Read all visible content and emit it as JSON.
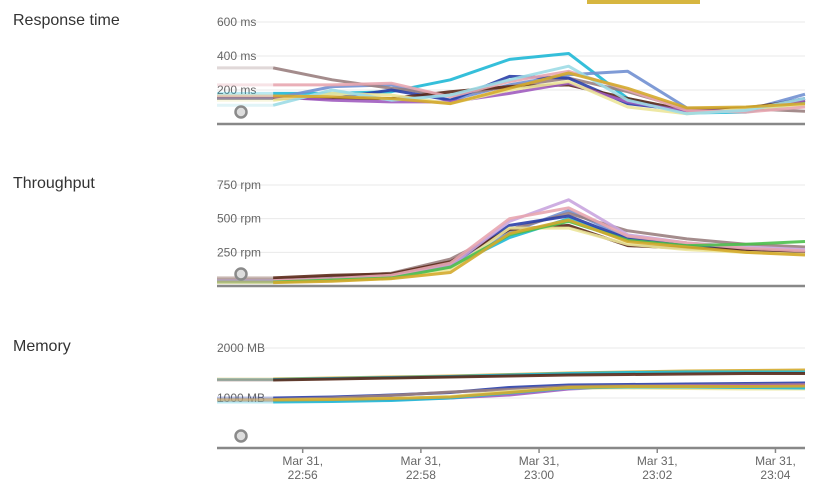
{
  "chart_data": [
    {
      "type": "line",
      "title": "Response time",
      "y_ticks": [
        {
          "value": 200,
          "label": "200 ms"
        },
        {
          "value": 400,
          "label": "400 ms"
        },
        {
          "value": 600,
          "label": "600 ms"
        }
      ],
      "ylim": [
        0,
        600
      ],
      "series": [
        {
          "color": "#1fb8d6",
          "values": [
            180,
            180,
            190,
            260,
            380,
            415,
            150,
            65,
            70,
            130
          ]
        },
        {
          "color": "#7190d2",
          "values": [
            150,
            220,
            230,
            140,
            230,
            290,
            310,
            95,
            80,
            175
          ]
        },
        {
          "color": "#9a8080",
          "values": [
            330,
            260,
            210,
            170,
            220,
            270,
            190,
            90,
            90,
            75
          ]
        },
        {
          "color": "#2a3fa8",
          "values": [
            150,
            150,
            200,
            140,
            280,
            270,
            120,
            80,
            85,
            150
          ]
        },
        {
          "color": "#5c2a1a",
          "values": [
            150,
            150,
            150,
            190,
            220,
            230,
            150,
            80,
            95,
            140
          ]
        },
        {
          "color": "#a05cbf",
          "values": [
            160,
            140,
            130,
            130,
            180,
            240,
            130,
            75,
            80,
            140
          ]
        },
        {
          "color": "#ece59a",
          "values": [
            140,
            180,
            170,
            120,
            200,
            250,
            100,
            60,
            90,
            110
          ]
        },
        {
          "color": "#e8a6b0",
          "values": [
            230,
            230,
            240,
            160,
            250,
            310,
            200,
            80,
            70,
            100
          ]
        },
        {
          "color": "#9ddbe6",
          "values": [
            110,
            200,
            140,
            170,
            260,
            340,
            140,
            60,
            80,
            150
          ]
        },
        {
          "color": "#d4aa2c",
          "values": [
            165,
            160,
            150,
            120,
            210,
            300,
            210,
            95,
            100,
            120
          ]
        }
      ]
    },
    {
      "type": "line",
      "title": "Throughput",
      "y_ticks": [
        {
          "value": 250,
          "label": "250 rpm"
        },
        {
          "value": 500,
          "label": "500 rpm"
        },
        {
          "value": 750,
          "label": "750 rpm"
        }
      ],
      "ylim": [
        0,
        750
      ],
      "series": [
        {
          "color": "#1fb8d6",
          "values": [
            30,
            40,
            60,
            140,
            360,
            500,
            340,
            300,
            270,
            240
          ]
        },
        {
          "color": "#7190d2",
          "values": [
            35,
            50,
            70,
            150,
            400,
            560,
            360,
            310,
            280,
            260
          ]
        },
        {
          "color": "#9a8080",
          "values": [
            50,
            70,
            95,
            200,
            420,
            540,
            410,
            350,
            310,
            290
          ]
        },
        {
          "color": "#2a3fa8",
          "values": [
            40,
            55,
            75,
            160,
            450,
            520,
            350,
            300,
            270,
            250
          ]
        },
        {
          "color": "#5c2a1a",
          "values": [
            60,
            80,
            90,
            180,
            420,
            450,
            300,
            280,
            270,
            250
          ]
        },
        {
          "color": "#c9a5df",
          "values": [
            35,
            45,
            65,
            150,
            480,
            640,
            380,
            320,
            290,
            270
          ]
        },
        {
          "color": "#ece59a",
          "values": [
            30,
            40,
            55,
            120,
            430,
            430,
            310,
            270,
            250,
            235
          ]
        },
        {
          "color": "#e8a6b0",
          "values": [
            40,
            55,
            80,
            170,
            500,
            580,
            370,
            320,
            280,
            260
          ]
        },
        {
          "color": "#4cbf4c",
          "values": [
            30,
            45,
            60,
            140,
            380,
            480,
            340,
            300,
            310,
            330
          ]
        },
        {
          "color": "#d4aa2c",
          "values": [
            25,
            35,
            55,
            100,
            390,
            490,
            330,
            290,
            250,
            230
          ]
        }
      ]
    },
    {
      "type": "line",
      "title": "Memory",
      "y_ticks": [
        {
          "value": 1000,
          "label": "1000 MB"
        },
        {
          "value": 2000,
          "label": "2000 MB"
        }
      ],
      "ylim": [
        0,
        2000
      ],
      "x_ticks": [
        "Mar 31,|22:56",
        "Mar 31,|22:58",
        "Mar 31,|23:00",
        "Mar 31,|23:02",
        "Mar 31,|23:04"
      ],
      "series": [
        {
          "color": "#2a3fa8",
          "values": [
            1000,
            1020,
            1060,
            1110,
            1210,
            1260,
            1270,
            1280,
            1290,
            1300
          ]
        },
        {
          "color": "#9a8080",
          "values": [
            970,
            1000,
            1050,
            1120,
            1170,
            1230,
            1240,
            1250,
            1260,
            1270
          ]
        },
        {
          "color": "#a05cbf",
          "values": [
            950,
            960,
            970,
            1000,
            1060,
            1180,
            1230,
            1240,
            1250,
            1260
          ]
        },
        {
          "color": "#ece59a",
          "values": [
            960,
            970,
            990,
            1030,
            1130,
            1200,
            1200,
            1190,
            1180,
            1180
          ]
        },
        {
          "color": "#1fb8d6",
          "values": [
            920,
            930,
            950,
            1000,
            1100,
            1200,
            1220,
            1220,
            1210,
            1200
          ]
        },
        {
          "color": "#d4aa2c",
          "values": [
            960,
            970,
            990,
            1020,
            1110,
            1210,
            1230,
            1230,
            1230,
            1240
          ]
        },
        {
          "color": "#d4aa2c",
          "values": [
            1380,
            1400,
            1420,
            1440,
            1470,
            1500,
            1520,
            1540,
            1550,
            1560
          ]
        },
        {
          "color": "#1fb8d6",
          "values": [
            1370,
            1390,
            1410,
            1430,
            1460,
            1490,
            1510,
            1520,
            1520,
            1520
          ]
        },
        {
          "color": "#5c2a1a",
          "values": [
            1360,
            1380,
            1400,
            1420,
            1440,
            1460,
            1470,
            1480,
            1490,
            1490
          ]
        }
      ]
    }
  ],
  "x_minutes": [
    55.5,
    56.5,
    57.5,
    58.5,
    59.5,
    60.5,
    61.5,
    62.5,
    63.5,
    64.5
  ],
  "x_domain_minutes": [
    54.55,
    64.5
  ],
  "tick_minutes": [
    56,
    58,
    60,
    62,
    64
  ],
  "highlight_color": "#d7b640"
}
